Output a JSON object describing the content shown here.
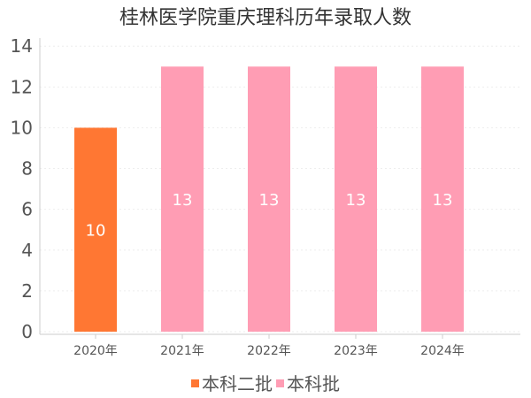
{
  "chart_data": {
    "type": "bar",
    "title": "桂林医学院重庆理科历年录取人数",
    "categories": [
      "2020年",
      "2021年",
      "2022年",
      "2023年",
      "2024年"
    ],
    "series": [
      {
        "name": "本科二批",
        "color": "#ff7733",
        "values": [
          10,
          null,
          null,
          null,
          null
        ]
      },
      {
        "name": "本科批",
        "color": "#ff9db4",
        "values": [
          null,
          13,
          13,
          13,
          13
        ]
      }
    ],
    "yticks": [
      0,
      2,
      4,
      6,
      8,
      10,
      12,
      14
    ],
    "ylim": [
      0,
      14.4
    ],
    "xlabel": "",
    "ylabel": "",
    "grid": true,
    "legend_position": "bottom"
  }
}
